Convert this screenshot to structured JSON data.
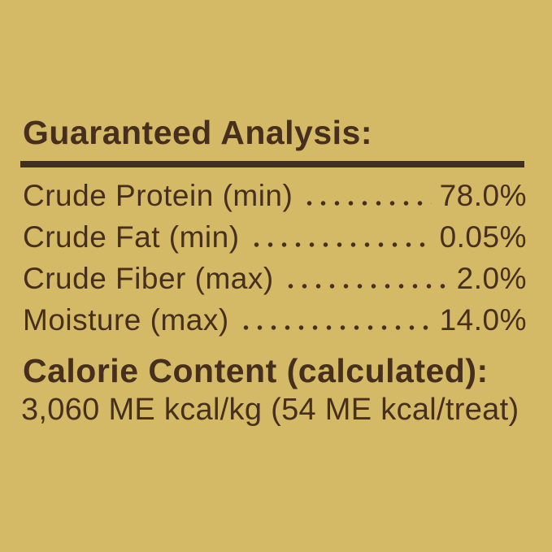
{
  "page": {
    "background_color": "#d4b967",
    "text_color": "#46301d",
    "rule_color": "#40301e"
  },
  "guaranteed_analysis": {
    "title": "Guaranteed Analysis:",
    "rows": [
      {
        "label": "Crude Protein (min)",
        "value": "78.0%"
      },
      {
        "label": "Crude Fat (min)",
        "value": "0.05%"
      },
      {
        "label": "Crude Fiber (max)",
        "value": "2.0%"
      },
      {
        "label": "Moisture (max)",
        "value": "14.0%"
      }
    ]
  },
  "calorie_content": {
    "title": "Calorie Content (calculated):",
    "value": "3,060 ME kcal/kg (54 ME kcal/treat)"
  }
}
